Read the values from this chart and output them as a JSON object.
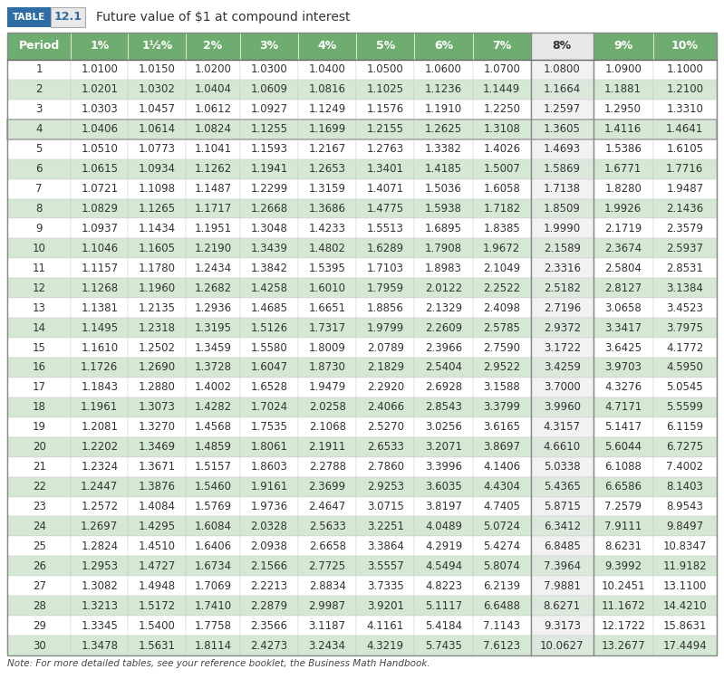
{
  "title": "Future value of $1 at compound interest",
  "table_label": "TABLE",
  "table_number": "12.1",
  "headers": [
    "Period",
    "1%",
    "1½%",
    "2%",
    "3%",
    "4%",
    "5%",
    "6%",
    "7%",
    "8%",
    "9%",
    "10%"
  ],
  "rows": [
    [
      1,
      1.01,
      1.015,
      1.02,
      1.03,
      1.04,
      1.05,
      1.06,
      1.07,
      1.08,
      1.09,
      1.1
    ],
    [
      2,
      1.0201,
      1.0302,
      1.0404,
      1.0609,
      1.0816,
      1.1025,
      1.1236,
      1.1449,
      1.1664,
      1.1881,
      1.21
    ],
    [
      3,
      1.0303,
      1.0457,
      1.0612,
      1.0927,
      1.1249,
      1.1576,
      1.191,
      1.225,
      1.2597,
      1.295,
      1.331
    ],
    [
      4,
      1.0406,
      1.0614,
      1.0824,
      1.1255,
      1.1699,
      1.2155,
      1.2625,
      1.3108,
      1.3605,
      1.4116,
      1.4641
    ],
    [
      5,
      1.051,
      1.0773,
      1.1041,
      1.1593,
      1.2167,
      1.2763,
      1.3382,
      1.4026,
      1.4693,
      1.5386,
      1.6105
    ],
    [
      6,
      1.0615,
      1.0934,
      1.1262,
      1.1941,
      1.2653,
      1.3401,
      1.4185,
      1.5007,
      1.5869,
      1.6771,
      1.7716
    ],
    [
      7,
      1.0721,
      1.1098,
      1.1487,
      1.2299,
      1.3159,
      1.4071,
      1.5036,
      1.6058,
      1.7138,
      1.828,
      1.9487
    ],
    [
      8,
      1.0829,
      1.1265,
      1.1717,
      1.2668,
      1.3686,
      1.4775,
      1.5938,
      1.7182,
      1.8509,
      1.9926,
      2.1436
    ],
    [
      9,
      1.0937,
      1.1434,
      1.1951,
      1.3048,
      1.4233,
      1.5513,
      1.6895,
      1.8385,
      1.999,
      2.1719,
      2.3579
    ],
    [
      10,
      1.1046,
      1.1605,
      1.219,
      1.3439,
      1.4802,
      1.6289,
      1.7908,
      1.9672,
      2.1589,
      2.3674,
      2.5937
    ],
    [
      11,
      1.1157,
      1.178,
      1.2434,
      1.3842,
      1.5395,
      1.7103,
      1.8983,
      2.1049,
      2.3316,
      2.5804,
      2.8531
    ],
    [
      12,
      1.1268,
      1.196,
      1.2682,
      1.4258,
      1.601,
      1.7959,
      2.0122,
      2.2522,
      2.5182,
      2.8127,
      3.1384
    ],
    [
      13,
      1.1381,
      1.2135,
      1.2936,
      1.4685,
      1.6651,
      1.8856,
      2.1329,
      2.4098,
      2.7196,
      3.0658,
      3.4523
    ],
    [
      14,
      1.1495,
      1.2318,
      1.3195,
      1.5126,
      1.7317,
      1.9799,
      2.2609,
      2.5785,
      2.9372,
      3.3417,
      3.7975
    ],
    [
      15,
      1.161,
      1.2502,
      1.3459,
      1.558,
      1.8009,
      2.0789,
      2.3966,
      2.759,
      3.1722,
      3.6425,
      4.1772
    ],
    [
      16,
      1.1726,
      1.269,
      1.3728,
      1.6047,
      1.873,
      2.1829,
      2.5404,
      2.9522,
      3.4259,
      3.9703,
      4.595
    ],
    [
      17,
      1.1843,
      1.288,
      1.4002,
      1.6528,
      1.9479,
      2.292,
      2.6928,
      3.1588,
      3.7,
      4.3276,
      5.0545
    ],
    [
      18,
      1.1961,
      1.3073,
      1.4282,
      1.7024,
      2.0258,
      2.4066,
      2.8543,
      3.3799,
      3.996,
      4.7171,
      5.5599
    ],
    [
      19,
      1.2081,
      1.327,
      1.4568,
      1.7535,
      2.1068,
      2.527,
      3.0256,
      3.6165,
      4.3157,
      5.1417,
      6.1159
    ],
    [
      20,
      1.2202,
      1.3469,
      1.4859,
      1.8061,
      2.1911,
      2.6533,
      3.2071,
      3.8697,
      4.661,
      5.6044,
      6.7275
    ],
    [
      21,
      1.2324,
      1.3671,
      1.5157,
      1.8603,
      2.2788,
      2.786,
      3.3996,
      4.1406,
      5.0338,
      6.1088,
      7.4002
    ],
    [
      22,
      1.2447,
      1.3876,
      1.546,
      1.9161,
      2.3699,
      2.9253,
      3.6035,
      4.4304,
      5.4365,
      6.6586,
      8.1403
    ],
    [
      23,
      1.2572,
      1.4084,
      1.5769,
      1.9736,
      2.4647,
      3.0715,
      3.8197,
      4.7405,
      5.8715,
      7.2579,
      8.9543
    ],
    [
      24,
      1.2697,
      1.4295,
      1.6084,
      2.0328,
      2.5633,
      3.2251,
      4.0489,
      5.0724,
      6.3412,
      7.9111,
      9.8497
    ],
    [
      25,
      1.2824,
      1.451,
      1.6406,
      2.0938,
      2.6658,
      3.3864,
      4.2919,
      5.4274,
      6.8485,
      8.6231,
      10.8347
    ],
    [
      26,
      1.2953,
      1.4727,
      1.6734,
      2.1566,
      2.7725,
      3.5557,
      4.5494,
      5.8074,
      7.3964,
      9.3992,
      11.9182
    ],
    [
      27,
      1.3082,
      1.4948,
      1.7069,
      2.2213,
      2.8834,
      3.7335,
      4.8223,
      6.2139,
      7.9881,
      10.2451,
      13.11
    ],
    [
      28,
      1.3213,
      1.5172,
      1.741,
      2.2879,
      2.9987,
      3.9201,
      5.1117,
      6.6488,
      8.6271,
      11.1672,
      14.421
    ],
    [
      29,
      1.3345,
      1.54,
      1.7758,
      2.3566,
      3.1187,
      4.1161,
      5.4184,
      7.1143,
      9.3173,
      12.1722,
      15.8631
    ],
    [
      30,
      1.3478,
      1.5631,
      1.8114,
      2.4273,
      3.2434,
      4.3219,
      5.7435,
      7.6123,
      10.0627,
      13.2677,
      17.4494
    ]
  ],
  "note": "Note: For more detailed tables, see your reference booklet, the Business Math Handbook.",
  "green_header_bg": "#6fac6f",
  "green_row_bg": "#d4e8d4",
  "white_row_bg": "#ffffff",
  "highlight_row_bg": "#ffffff",
  "col8_header_bg": "#e8e8e8",
  "col8_row_bg_even": "#f0f0f0",
  "col8_row_bg_odd": "#e8e8e8",
  "table_label_bg": "#2e6da4",
  "table_number_bg": "#e8e8e8",
  "title_fontsize": 10,
  "header_fontsize": 9,
  "data_fontsize": 8.5,
  "note_fontsize": 7.5,
  "highlight_col_idx": 9,
  "highlight_row_idx": 3
}
